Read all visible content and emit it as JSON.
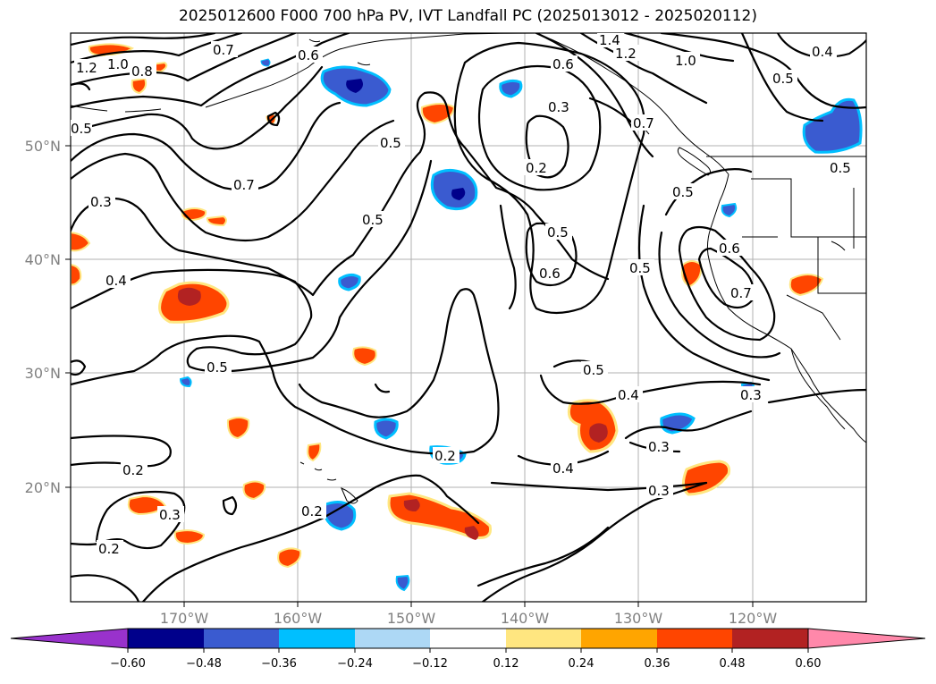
{
  "title": "2025012600 F000 700 hPa PV, IVT Landfall PC (2025013012 - 2025020112)",
  "lon_ticks": [
    "170°W",
    "160°W",
    "150°W",
    "140°W",
    "130°W",
    "120°W"
  ],
  "lat_ticks": [
    "50°N",
    "40°N",
    "30°N",
    "20°N"
  ],
  "contour_labels": [
    "0.2",
    "0.3",
    "0.4",
    "0.5",
    "0.6",
    "0.7",
    "0.8",
    "1.0",
    "1.2",
    "1.4"
  ],
  "colorbar": {
    "ticks": [
      "−0.60",
      "−0.48",
      "−0.36",
      "−0.24",
      "−0.12",
      "0.12",
      "0.24",
      "0.36",
      "0.48",
      "0.60"
    ],
    "colors": [
      "#9932cc",
      "#00008b",
      "#3a5bd0",
      "#00bfff",
      "#add8f5",
      "#ffffff",
      "#ffe680",
      "#ffa500",
      "#ff4500",
      "#b22222",
      "#ff88aa"
    ]
  }
}
